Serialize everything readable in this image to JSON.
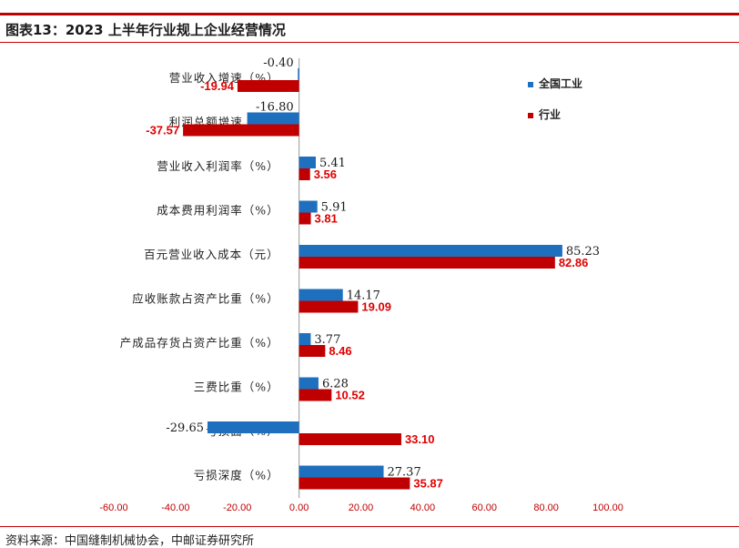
{
  "header": {
    "title": "图表13：2023 上半年行业规上企业经营情况"
  },
  "footer": {
    "source": "资料来源：中国缝制机械协会，中邮证券研究所"
  },
  "colors": {
    "series_a": "#1f6fbf",
    "series_b": "#c00000",
    "accent_rule": "#c00000"
  },
  "chart_data": {
    "type": "bar",
    "orientation": "horizontal",
    "categories": [
      "营业收入增速（%）",
      "利润总额增速（%）",
      "营业收入利润率（%）",
      "成本费用利润率（%）",
      "百元营业收入成本（元）",
      "应收账款占资产比重（%）",
      "产成品存货占资产比重（%）",
      "三费比重（%）",
      "亏损面（%）",
      "亏损深度（%）"
    ],
    "series": [
      {
        "name": "全国工业",
        "values": [
          -0.4,
          -16.8,
          5.41,
          5.91,
          85.23,
          14.17,
          3.77,
          6.28,
          -29.65,
          27.37
        ],
        "labels": [
          "-0.40",
          "-16.80",
          "5.41",
          "5.91",
          "85.23",
          "14.17",
          "3.77",
          "6.28",
          "-29.65",
          "27.37"
        ]
      },
      {
        "name": "行业",
        "values": [
          -19.94,
          -37.57,
          3.56,
          3.81,
          82.86,
          19.09,
          8.46,
          10.52,
          33.1,
          35.87
        ],
        "labels": [
          "-19.94",
          "-37.57",
          "3.56",
          "3.81",
          "82.86",
          "19.09",
          "8.46",
          "10.52",
          "33.10",
          "35.87"
        ]
      }
    ],
    "xlim": [
      -60,
      100
    ],
    "xticks": [
      "-60.00",
      "-40.00",
      "-20.00",
      "0.00",
      "20.00",
      "40.00",
      "60.00",
      "80.00",
      "100.00"
    ],
    "xtick_values": [
      -60,
      -40,
      -20,
      0,
      20,
      40,
      60,
      80,
      100
    ],
    "legend_position": "top-right",
    "grid": false
  }
}
